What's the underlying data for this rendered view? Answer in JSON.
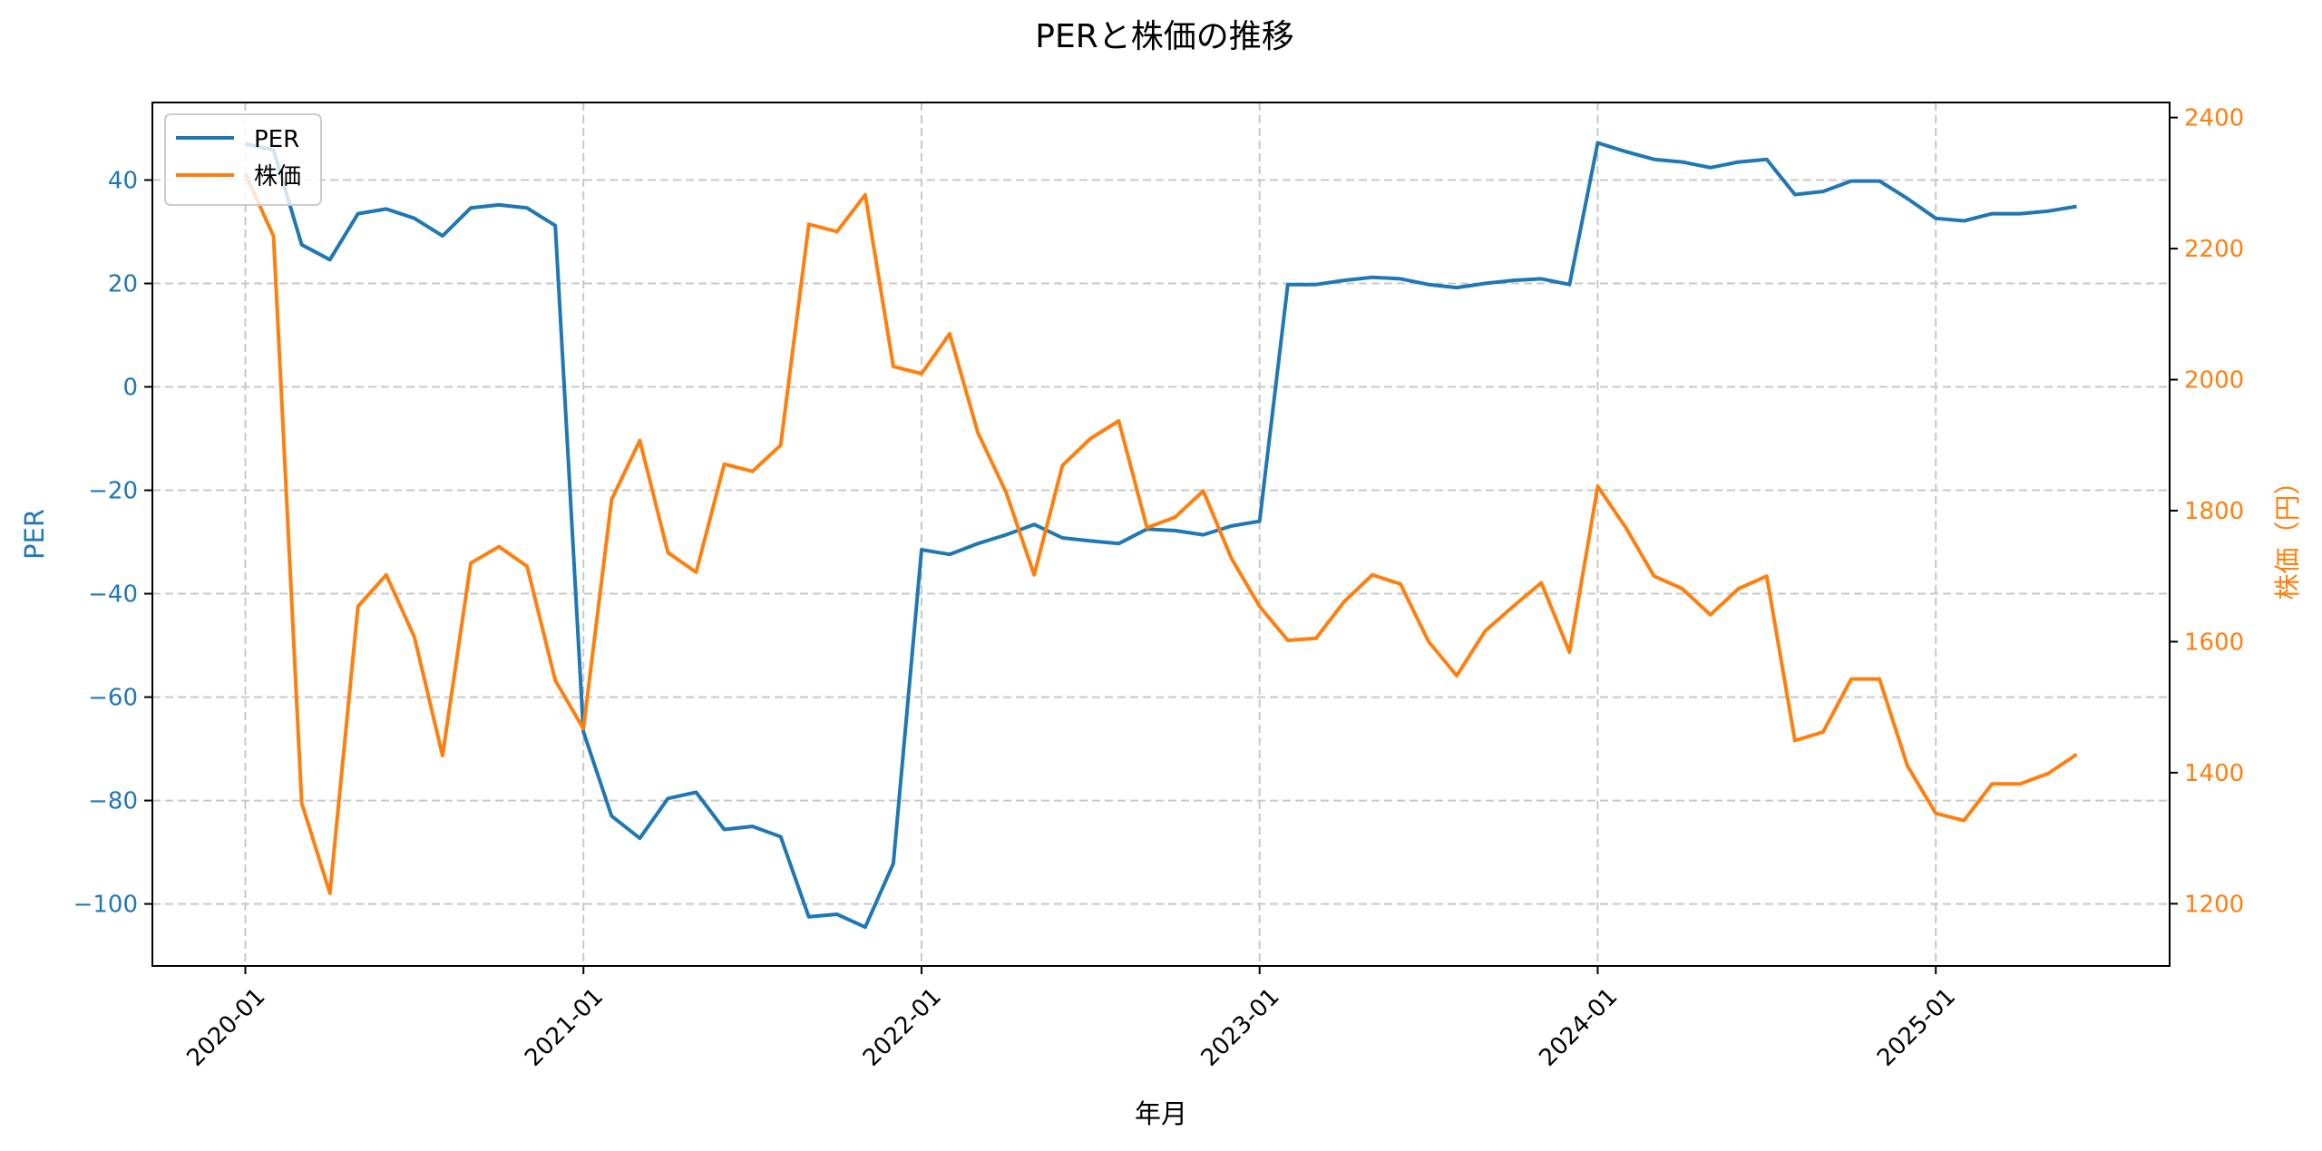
{
  "chart_data": {
    "type": "line",
    "title": "PERと株価の推移",
    "xlabel": "年月",
    "ylabel_left": "PER",
    "ylabel_right": "株価（円）",
    "x_ticks": [
      "2020-01",
      "2021-01",
      "2022-01",
      "2023-01",
      "2024-01",
      "2025-01"
    ],
    "y_left_ticks": [
      40,
      20,
      0,
      -20,
      -40,
      -60,
      -80,
      -100
    ],
    "y_left_tick_labels": [
      "40",
      "20",
      "0",
      "−20",
      "−40",
      "−60",
      "−80",
      "−100"
    ],
    "y_right_ticks": [
      2400,
      2200,
      2000,
      1800,
      1600,
      1400,
      1200
    ],
    "y_right_tick_labels": [
      "2400",
      "2200",
      "2000",
      "1800",
      "1600",
      "1400",
      "1200"
    ],
    "ylim_left": [
      -112,
      55
    ],
    "ylim_right": [
      1105,
      2423
    ],
    "start_month": "2020-01",
    "grid": true,
    "legend_position": "top-left",
    "colors": {
      "per": "#1f77b4",
      "price": "#ff7f0e",
      "grid": "#c8c8c8"
    },
    "series": [
      {
        "name": "PER",
        "axis": "left",
        "values": [
          47,
          45.8,
          27.5,
          24.6,
          33.5,
          34.4,
          32.6,
          29.2,
          34.6,
          35.2,
          34.6,
          31.2,
          -66.7,
          -83,
          -87.3,
          -79.6,
          -78.4,
          -85.6,
          -85,
          -87,
          -102.5,
          -102,
          -104.5,
          -92.2,
          -31.5,
          -32.4,
          -30.3,
          -28.6,
          -26.6,
          -29.2,
          -29.8,
          -30.3,
          -27.5,
          -27.8,
          -28.6,
          -26.9,
          -26,
          19.8,
          19.8,
          20.6,
          21.2,
          20.9,
          19.8,
          19.2,
          20,
          20.6,
          20.9,
          19.8,
          47.2,
          45.5,
          44,
          43.5,
          42.4,
          43.5,
          44,
          37.2,
          37.8,
          39.8,
          39.8,
          36.4,
          32.6,
          32.1,
          33.5,
          33.5,
          34,
          34.9
        ]
      },
      {
        "name": "株価",
        "axis": "right",
        "values": [
          2314,
          2219,
          1354,
          1216,
          1654,
          1702,
          1607,
          1426,
          1720,
          1745,
          1715,
          1541,
          1467,
          1817,
          1907,
          1736,
          1706,
          1871,
          1860,
          1900,
          2237,
          2226,
          2282,
          2020,
          2009,
          2070,
          1919,
          1828,
          1702,
          1869,
          1910,
          1937,
          1774,
          1790,
          1830,
          1727,
          1654,
          1602,
          1605,
          1661,
          1702,
          1688,
          1600,
          1548,
          1616,
          1654,
          1690,
          1584,
          1837,
          1774,
          1700,
          1681,
          1641,
          1681,
          1700,
          1449,
          1462,
          1543,
          1543,
          1410,
          1338,
          1327,
          1383,
          1383,
          1399,
          1428
        ]
      }
    ]
  }
}
